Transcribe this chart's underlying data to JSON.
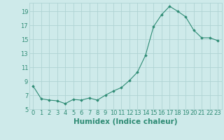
{
  "x": [
    0,
    1,
    2,
    3,
    4,
    5,
    6,
    7,
    8,
    9,
    10,
    11,
    12,
    13,
    14,
    15,
    16,
    17,
    18,
    19,
    20,
    21,
    22,
    23
  ],
  "y": [
    8.3,
    6.5,
    6.3,
    6.2,
    5.8,
    6.4,
    6.3,
    6.6,
    6.3,
    7.0,
    7.6,
    8.1,
    9.1,
    10.3,
    12.7,
    16.8,
    18.5,
    19.7,
    19.0,
    18.2,
    16.3,
    15.2,
    15.2,
    14.8
  ],
  "line_color": "#2e8b74",
  "marker": "D",
  "marker_size": 1.8,
  "bg_color": "#ceeaea",
  "grid_color": "#afd4d4",
  "xlabel": "Humidex (Indice chaleur)",
  "xlim": [
    -0.5,
    23.5
  ],
  "ylim": [
    5,
    20.2
  ],
  "yticks": [
    5,
    7,
    9,
    11,
    13,
    15,
    17,
    19
  ],
  "xticks": [
    0,
    1,
    2,
    3,
    4,
    5,
    6,
    7,
    8,
    9,
    10,
    11,
    12,
    13,
    14,
    15,
    16,
    17,
    18,
    19,
    20,
    21,
    22,
    23
  ],
  "tick_color": "#2e8b74",
  "font_size": 6.0,
  "label_font_size": 7.5
}
